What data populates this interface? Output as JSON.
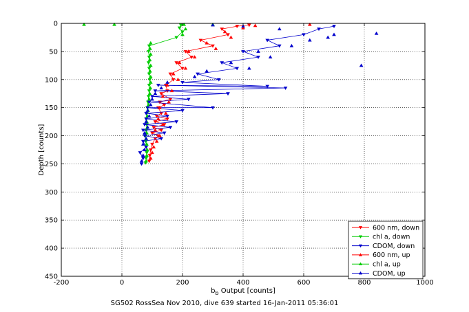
{
  "chart_data": {
    "type": "scatter",
    "title": "",
    "xlabel_main": "b",
    "xlabel_sub": "b",
    "xlabel_rest": " Output [counts]",
    "ylabel": "Depth [counts]",
    "xlim": [
      -200,
      1000
    ],
    "ylim": [
      0,
      450
    ],
    "y_reversed": true,
    "grid": true,
    "legend_position": "bottom-right",
    "x_ticks": [
      -200,
      0,
      200,
      400,
      600,
      800,
      1000
    ],
    "y_ticks": [
      0,
      50,
      100,
      150,
      200,
      250,
      300,
      350,
      400,
      450
    ],
    "series": [
      {
        "name": "600 nm, down",
        "color": "#ff0000",
        "marker": "triangle-down",
        "line": true,
        "points": [
          [
            90,
            245
          ],
          [
            92,
            235
          ],
          [
            95,
            225
          ],
          [
            100,
            215
          ],
          [
            110,
            205
          ],
          [
            120,
            200
          ],
          [
            100,
            195
          ],
          [
            130,
            190
          ],
          [
            105,
            185
          ],
          [
            140,
            180
          ],
          [
            110,
            175
          ],
          [
            150,
            170
          ],
          [
            115,
            165
          ],
          [
            130,
            160
          ],
          [
            120,
            150
          ],
          [
            140,
            145
          ],
          [
            125,
            140
          ],
          [
            160,
            135
          ],
          [
            130,
            125
          ],
          [
            150,
            120
          ],
          [
            145,
            110
          ],
          [
            170,
            100
          ],
          [
            160,
            90
          ],
          [
            200,
            80
          ],
          [
            180,
            70
          ],
          [
            230,
            60
          ],
          [
            210,
            50
          ],
          [
            300,
            40
          ],
          [
            260,
            30
          ],
          [
            350,
            20
          ],
          [
            330,
            10
          ],
          [
            380,
            5
          ],
          [
            420,
            3
          ]
        ]
      },
      {
        "name": "chl a, down",
        "color": "#00cc00",
        "marker": "triangle-down",
        "line": true,
        "points": [
          [
            78,
            248
          ],
          [
            80,
            240
          ],
          [
            82,
            230
          ],
          [
            80,
            220
          ],
          [
            79,
            210
          ],
          [
            78,
            200
          ],
          [
            80,
            190
          ],
          [
            82,
            180
          ],
          [
            80,
            170
          ],
          [
            82,
            160
          ],
          [
            84,
            150
          ],
          [
            86,
            140
          ],
          [
            88,
            130
          ],
          [
            90,
            120
          ],
          [
            90,
            110
          ],
          [
            92,
            100
          ],
          [
            90,
            90
          ],
          [
            90,
            80
          ],
          [
            88,
            70
          ],
          [
            90,
            60
          ],
          [
            88,
            50
          ],
          [
            90,
            40
          ],
          [
            180,
            25
          ],
          [
            200,
            15
          ],
          [
            190,
            8
          ],
          [
            195,
            3
          ]
        ]
      },
      {
        "name": "CDOM, down",
        "color": "#0000cc",
        "marker": "triangle-down",
        "line": true,
        "points": [
          [
            65,
            250
          ],
          [
            70,
            240
          ],
          [
            60,
            230
          ],
          [
            80,
            220
          ],
          [
            70,
            210
          ],
          [
            130,
            205
          ],
          [
            75,
            200
          ],
          [
            140,
            195
          ],
          [
            70,
            190
          ],
          [
            160,
            185
          ],
          [
            75,
            180
          ],
          [
            180,
            175
          ],
          [
            80,
            170
          ],
          [
            150,
            165
          ],
          [
            80,
            160
          ],
          [
            200,
            155
          ],
          [
            85,
            150
          ],
          [
            300,
            150
          ],
          [
            90,
            140
          ],
          [
            220,
            135
          ],
          [
            100,
            130
          ],
          [
            350,
            125
          ],
          [
            110,
            120
          ],
          [
            540,
            115
          ],
          [
            120,
            110
          ],
          [
            480,
            112
          ],
          [
            200,
            105
          ],
          [
            320,
            100
          ],
          [
            250,
            90
          ],
          [
            380,
            80
          ],
          [
            330,
            70
          ],
          [
            450,
            60
          ],
          [
            400,
            50
          ],
          [
            520,
            40
          ],
          [
            480,
            30
          ],
          [
            600,
            20
          ],
          [
            650,
            10
          ],
          [
            700,
            5
          ]
        ]
      },
      {
        "name": "600 nm, up",
        "color": "#ff0000",
        "marker": "triangle-up",
        "line": false,
        "points": [
          [
            95,
            240
          ],
          [
            100,
            230
          ],
          [
            105,
            220
          ],
          [
            115,
            210
          ],
          [
            125,
            200
          ],
          [
            110,
            190
          ],
          [
            135,
            180
          ],
          [
            120,
            170
          ],
          [
            145,
            160
          ],
          [
            125,
            150
          ],
          [
            155,
            140
          ],
          [
            135,
            130
          ],
          [
            165,
            120
          ],
          [
            150,
            110
          ],
          [
            185,
            100
          ],
          [
            170,
            90
          ],
          [
            210,
            80
          ],
          [
            190,
            70
          ],
          [
            240,
            60
          ],
          [
            220,
            50
          ],
          [
            310,
            45
          ],
          [
            280,
            35
          ],
          [
            360,
            25
          ],
          [
            340,
            15
          ],
          [
            400,
            8
          ],
          [
            440,
            4
          ],
          [
            620,
            2
          ]
        ]
      },
      {
        "name": "chl a, up",
        "color": "#00cc00",
        "marker": "triangle-up",
        "line": false,
        "points": [
          [
            -125,
            2
          ],
          [
            -25,
            2
          ],
          [
            80,
            245
          ],
          [
            82,
            235
          ],
          [
            84,
            225
          ],
          [
            82,
            215
          ],
          [
            80,
            205
          ],
          [
            82,
            195
          ],
          [
            84,
            185
          ],
          [
            82,
            175
          ],
          [
            84,
            165
          ],
          [
            86,
            155
          ],
          [
            88,
            145
          ],
          [
            90,
            135
          ],
          [
            92,
            125
          ],
          [
            94,
            115
          ],
          [
            95,
            105
          ],
          [
            95,
            95
          ],
          [
            93,
            85
          ],
          [
            95,
            75
          ],
          [
            92,
            65
          ],
          [
            95,
            55
          ],
          [
            93,
            45
          ],
          [
            95,
            35
          ],
          [
            200,
            20
          ],
          [
            210,
            10
          ],
          [
            205,
            2
          ],
          [
            300,
            2
          ]
        ]
      },
      {
        "name": "CDOM, up",
        "color": "#0000cc",
        "marker": "triangle-up",
        "line": false,
        "points": [
          [
            65,
            245
          ],
          [
            70,
            235
          ],
          [
            75,
            225
          ],
          [
            70,
            215
          ],
          [
            80,
            205
          ],
          [
            75,
            195
          ],
          [
            85,
            185
          ],
          [
            80,
            175
          ],
          [
            90,
            165
          ],
          [
            85,
            155
          ],
          [
            95,
            145
          ],
          [
            100,
            135
          ],
          [
            110,
            125
          ],
          [
            130,
            115
          ],
          [
            150,
            105
          ],
          [
            240,
            95
          ],
          [
            280,
            85
          ],
          [
            420,
            80
          ],
          [
            360,
            70
          ],
          [
            490,
            60
          ],
          [
            450,
            50
          ],
          [
            560,
            40
          ],
          [
            620,
            30
          ],
          [
            680,
            25
          ],
          [
            700,
            20
          ],
          [
            840,
            18
          ],
          [
            790,
            75
          ],
          [
            520,
            10
          ],
          [
            400,
            5
          ],
          [
            300,
            3
          ]
        ]
      }
    ]
  },
  "caption": "SG502 RossSea Nov 2010, dive 639 started 16-Jan-2011 05:36:01"
}
